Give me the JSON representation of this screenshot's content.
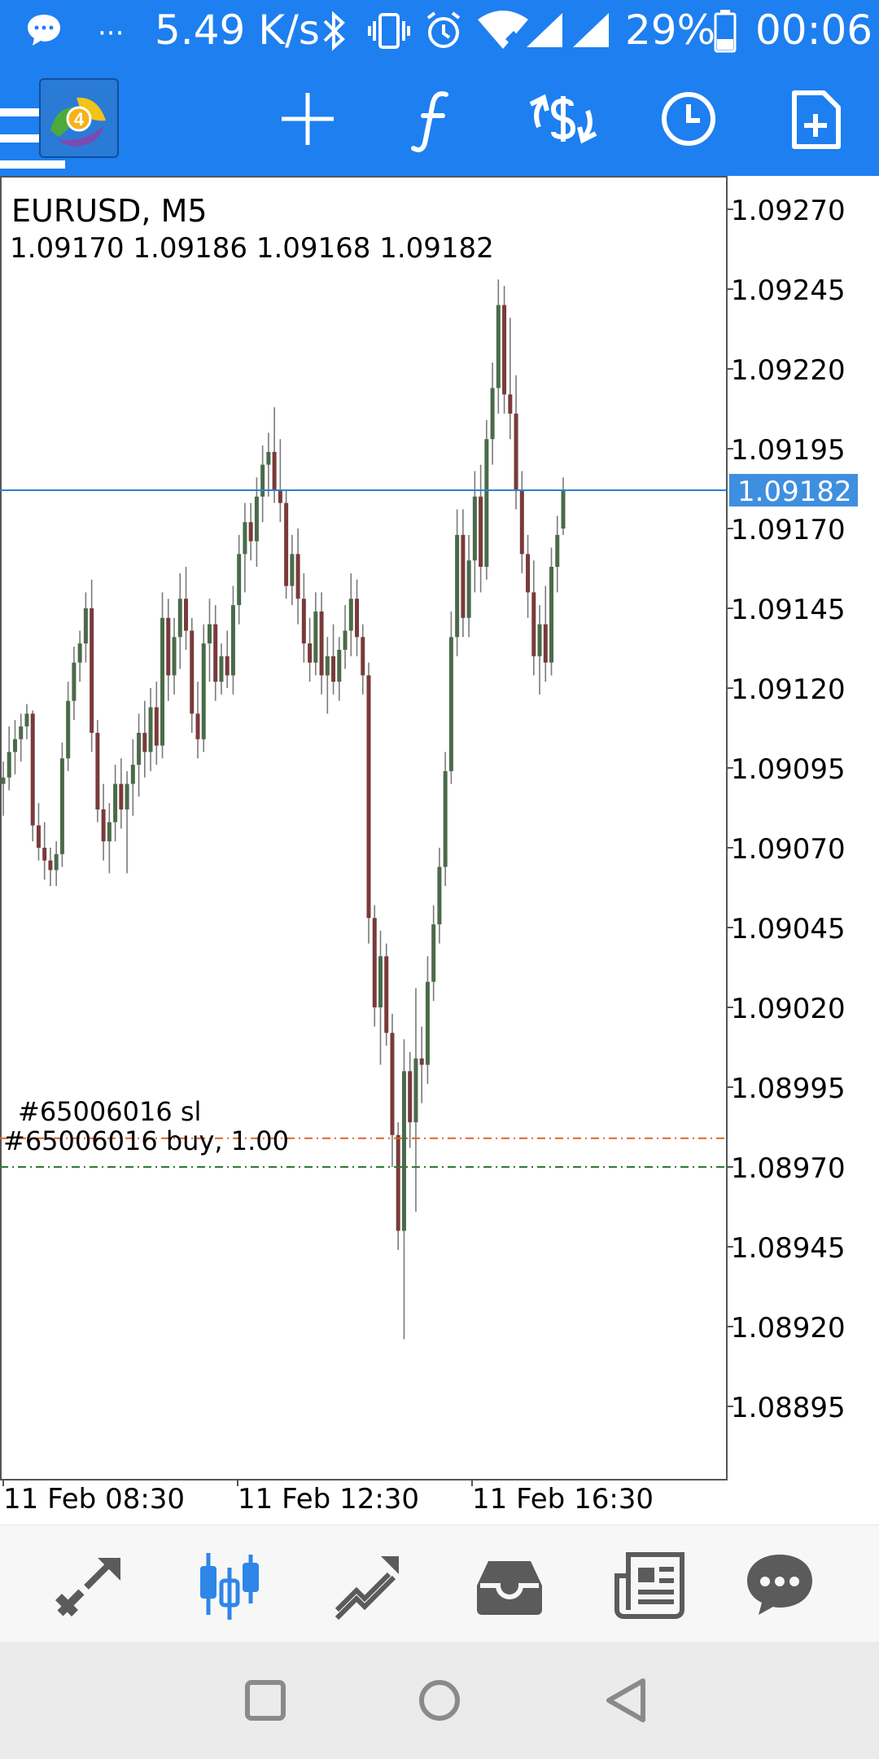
{
  "status_bar": {
    "network_speed": "5.49 K/s",
    "battery": "29%",
    "time": "00:06",
    "icons": [
      "message-icon",
      "more-icon",
      "bluetooth-icon",
      "vibrate-icon",
      "alarm-icon",
      "wifi-icon",
      "signal-icon",
      "signal-icon",
      "battery-icon"
    ]
  },
  "toolbar": {
    "icons": [
      "menu-icon",
      "metatrader-logo-icon",
      "crosshair-icon",
      "indicators-icon",
      "trade-icon",
      "timeframe-icon",
      "new-order-icon"
    ],
    "logo_digit": "4"
  },
  "chart": {
    "symbol": "EURUSD, M5",
    "ohlc": "1.09170 1.09186 1.09168 1.09182",
    "current_price": "1.09182",
    "price_axis_labels": [
      "1.09270",
      "1.09245",
      "1.09220",
      "1.09195",
      "1.09170",
      "1.09145",
      "1.09120",
      "1.09095",
      "1.09070",
      "1.09045",
      "1.09020",
      "1.08995",
      "1.08970",
      "1.08945",
      "1.08920",
      "1.08895"
    ],
    "time_axis_labels": [
      "11 Feb 08:30",
      "11 Feb 12:30",
      "11 Feb 16:30"
    ],
    "order_sl_label": "#65006016 sl",
    "order_label": "#65006016 buy, 1.00",
    "colors": {
      "bull": "#4a6b4a",
      "bear": "#7a3a3a",
      "bid_line": "#2e7fd6",
      "sl_line": "#e0642a",
      "order_line": "#2f7a2f"
    }
  },
  "chart_data": {
    "type": "candlestick",
    "title": "EURUSD, M5",
    "ylim": [
      1.0887,
      1.09285
    ],
    "x": [
      "11 Feb 08:30",
      "11 Feb 12:30",
      "11 Feb 16:30"
    ],
    "sl_price": 1.08979,
    "order_price": 1.0897,
    "current_price": 1.09182,
    "candles": [
      [
        1.0909,
        1.09097,
        1.0908,
        1.09092
      ],
      [
        1.09092,
        1.09108,
        1.09088,
        1.091
      ],
      [
        1.091,
        1.0911,
        1.09093,
        1.09104
      ],
      [
        1.09104,
        1.09112,
        1.09097,
        1.09108
      ],
      [
        1.09108,
        1.09115,
        1.09104,
        1.09112
      ],
      [
        1.09112,
        1.09113,
        1.09072,
        1.09077
      ],
      [
        1.09077,
        1.09084,
        1.09066,
        1.0907
      ],
      [
        1.0907,
        1.09078,
        1.0906,
        1.09066
      ],
      [
        1.09066,
        1.0907,
        1.09058,
        1.09063
      ],
      [
        1.09063,
        1.09072,
        1.09058,
        1.09068
      ],
      [
        1.09068,
        1.09103,
        1.09064,
        1.09098
      ],
      [
        1.09098,
        1.09122,
        1.09094,
        1.09116
      ],
      [
        1.09116,
        1.09133,
        1.0911,
        1.09128
      ],
      [
        1.09128,
        1.09138,
        1.09122,
        1.09134
      ],
      [
        1.09134,
        1.0915,
        1.09128,
        1.09145
      ],
      [
        1.09145,
        1.09154,
        1.091,
        1.09106
      ],
      [
        1.09106,
        1.0911,
        1.09078,
        1.09082
      ],
      [
        1.09082,
        1.0909,
        1.09066,
        1.09072
      ],
      [
        1.09072,
        1.09084,
        1.09062,
        1.09078
      ],
      [
        1.09078,
        1.09096,
        1.09072,
        1.0909
      ],
      [
        1.0909,
        1.09098,
        1.09076,
        1.09082
      ],
      [
        1.09082,
        1.09094,
        1.09062,
        1.0909
      ],
      [
        1.0909,
        1.09104,
        1.0908,
        1.09096
      ],
      [
        1.09096,
        1.09112,
        1.09086,
        1.09106
      ],
      [
        1.09106,
        1.09116,
        1.09092,
        1.091
      ],
      [
        1.091,
        1.0912,
        1.09094,
        1.09114
      ],
      [
        1.09114,
        1.09122,
        1.09096,
        1.09102
      ],
      [
        1.09102,
        1.0915,
        1.09098,
        1.09142
      ],
      [
        1.09142,
        1.09148,
        1.09116,
        1.09124
      ],
      [
        1.09124,
        1.09142,
        1.09118,
        1.09136
      ],
      [
        1.09136,
        1.09156,
        1.09126,
        1.09148
      ],
      [
        1.09148,
        1.09158,
        1.09132,
        1.09138
      ],
      [
        1.09138,
        1.09142,
        1.09106,
        1.09112
      ],
      [
        1.09112,
        1.09122,
        1.09098,
        1.09104
      ],
      [
        1.09104,
        1.0914,
        1.091,
        1.09134
      ],
      [
        1.09134,
        1.09148,
        1.09122,
        1.0914
      ],
      [
        1.0914,
        1.09146,
        1.09116,
        1.09122
      ],
      [
        1.09122,
        1.09134,
        1.09118,
        1.0913
      ],
      [
        1.0913,
        1.09138,
        1.0912,
        1.09124
      ],
      [
        1.09124,
        1.09152,
        1.09118,
        1.09146
      ],
      [
        1.09146,
        1.09168,
        1.0914,
        1.09162
      ],
      [
        1.09162,
        1.09178,
        1.0915,
        1.09172
      ],
      [
        1.09172,
        1.09178,
        1.0916,
        1.09166
      ],
      [
        1.09166,
        1.09186,
        1.09158,
        1.0918
      ],
      [
        1.0918,
        1.09196,
        1.09172,
        1.0919
      ],
      [
        1.0919,
        1.092,
        1.0918,
        1.09194
      ],
      [
        1.09194,
        1.09208,
        1.09178,
        1.09182
      ],
      [
        1.09182,
        1.09198,
        1.09172,
        1.09178
      ],
      [
        1.09178,
        1.09182,
        1.09148,
        1.09152
      ],
      [
        1.09152,
        1.09168,
        1.09146,
        1.09162
      ],
      [
        1.09162,
        1.0917,
        1.0914,
        1.09148
      ],
      [
        1.09148,
        1.09156,
        1.09128,
        1.09134
      ],
      [
        1.09134,
        1.09142,
        1.09122,
        1.09128
      ],
      [
        1.09128,
        1.0915,
        1.09124,
        1.09144
      ],
      [
        1.09144,
        1.0915,
        1.09118,
        1.09124
      ],
      [
        1.09124,
        1.09136,
        1.09112,
        1.0913
      ],
      [
        1.0913,
        1.0914,
        1.09118,
        1.09122
      ],
      [
        1.09122,
        1.09136,
        1.09116,
        1.09132
      ],
      [
        1.09132,
        1.09146,
        1.09126,
        1.09138
      ],
      [
        1.09138,
        1.09156,
        1.0913,
        1.09148
      ],
      [
        1.09148,
        1.09154,
        1.0913,
        1.09136
      ],
      [
        1.09136,
        1.0914,
        1.09118,
        1.09124
      ],
      [
        1.09124,
        1.09128,
        1.0904,
        1.09048
      ],
      [
        1.09048,
        1.09052,
        1.09014,
        1.0902
      ],
      [
        1.0902,
        1.09044,
        1.09002,
        1.09036
      ],
      [
        1.09036,
        1.0904,
        1.09008,
        1.09012
      ],
      [
        1.09012,
        1.09018,
        1.0897,
        1.0898
      ],
      [
        1.0898,
        1.08984,
        1.08944,
        1.0895
      ],
      [
        1.0895,
        1.0901,
        1.08916,
        1.09
      ],
      [
        1.09,
        1.09006,
        1.08976,
        1.08984
      ],
      [
        1.08984,
        1.09026,
        1.08956,
        1.09004
      ],
      [
        1.09004,
        1.09014,
        1.0899,
        1.09002
      ],
      [
        1.09002,
        1.09036,
        1.08996,
        1.09028
      ],
      [
        1.09028,
        1.09052,
        1.09022,
        1.09046
      ],
      [
        1.09046,
        1.0907,
        1.0904,
        1.09064
      ],
      [
        1.09064,
        1.091,
        1.09058,
        1.09094
      ],
      [
        1.09094,
        1.09144,
        1.0909,
        1.09136
      ],
      [
        1.09136,
        1.09176,
        1.0913,
        1.09168
      ],
      [
        1.09168,
        1.09176,
        1.09136,
        1.09142
      ],
      [
        1.09142,
        1.09168,
        1.09136,
        1.0916
      ],
      [
        1.0916,
        1.09188,
        1.0915,
        1.0918
      ],
      [
        1.0918,
        1.0919,
        1.0915,
        1.09158
      ],
      [
        1.09158,
        1.09204,
        1.09154,
        1.09198
      ],
      [
        1.09198,
        1.09222,
        1.0919,
        1.09214
      ],
      [
        1.09214,
        1.09248,
        1.09206,
        1.0924
      ],
      [
        1.0924,
        1.09246,
        1.09206,
        1.09212
      ],
      [
        1.09212,
        1.09236,
        1.09198,
        1.09206
      ],
      [
        1.09206,
        1.09218,
        1.09176,
        1.09182
      ],
      [
        1.09182,
        1.09188,
        1.09156,
        1.09162
      ],
      [
        1.09162,
        1.09168,
        1.09142,
        1.0915
      ],
      [
        1.0915,
        1.0916,
        1.09124,
        1.0913
      ],
      [
        1.0913,
        1.09146,
        1.09118,
        1.0914
      ],
      [
        1.0914,
        1.09152,
        1.09122,
        1.09128
      ],
      [
        1.09128,
        1.09164,
        1.09124,
        1.09158
      ],
      [
        1.09158,
        1.09174,
        1.0915,
        1.09168
      ],
      [
        1.0917,
        1.09186,
        1.09168,
        1.09182
      ]
    ]
  },
  "bottom_nav": {
    "items": [
      "quotes-icon",
      "chart-icon",
      "trade-icon",
      "history-icon",
      "news-icon",
      "chat-icon"
    ],
    "active_index": 1,
    "active_color": "#2e86e8",
    "inactive_color": "#5b5b5b"
  },
  "system_nav": {
    "items": [
      "recents-icon",
      "home-icon",
      "back-icon"
    ]
  }
}
